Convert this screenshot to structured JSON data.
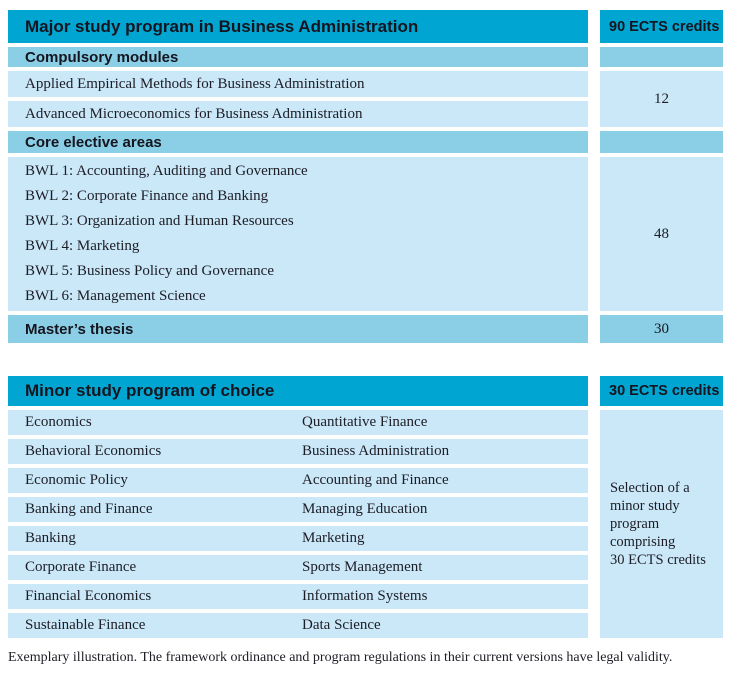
{
  "colors": {
    "header_cyan": "#00a5d2",
    "subheader_blue": "#8bcfe6",
    "row_light_blue": "#cae8f8",
    "text_dark": "#15151f"
  },
  "major": {
    "title": "Major study program in Business Administration",
    "credits_header": "90 ECTS credits",
    "compulsory_label": "Compulsory modules",
    "compulsory_modules": [
      "Applied Empirical Methods for Business Administration",
      "Advanced Microeconomics for Business Administration"
    ],
    "compulsory_credits": "12",
    "core_label": "Core elective areas",
    "core_areas": [
      "BWL 1: Accounting, Auditing and Governance",
      "BWL 2: Corporate Finance and Banking",
      "BWL 3: Organization and Human Resources",
      "BWL 4: Marketing",
      "BWL 5: Business Policy and Governance",
      "BWL 6: Management Science"
    ],
    "core_credits": "48",
    "thesis_label": "Master’s thesis",
    "thesis_credits": "30"
  },
  "minor": {
    "title": "Minor study program of choice",
    "credits_header": "30 ECTS credits",
    "rows": [
      {
        "left": "Economics",
        "right": "Quantitative Finance"
      },
      {
        "left": "Behavioral Economics",
        "right": "Business Administration"
      },
      {
        "left": "Economic Policy",
        "right": "Accounting and Finance"
      },
      {
        "left": "Banking and Finance",
        "right": "Managing Education"
      },
      {
        "left": "Banking",
        "right": "Marketing"
      },
      {
        "left": "Corporate Finance",
        "right": "Sports Management"
      },
      {
        "left": "Financial Economics",
        "right": "Information Systems"
      },
      {
        "left": "Sustainable Finance",
        "right": "Data Science"
      }
    ],
    "note_lines": [
      "Selection of a",
      "minor study",
      "program",
      "comprising",
      "30 ECTS credits"
    ]
  },
  "footer": {
    "text": "Exemplary illustration. The framework ordinance and program regulations in their current versions have legal validity."
  }
}
